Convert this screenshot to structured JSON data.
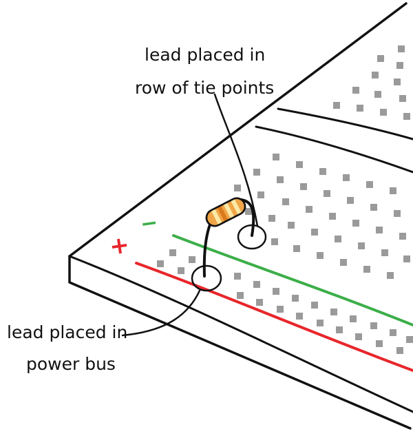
{
  "callouts": {
    "tie_points_line1": "lead placed in",
    "tie_points_line2": "row of tie points",
    "power_bus_line1": "lead placed in",
    "power_bus_line2": "power bus"
  },
  "bus_signs": {
    "minus": "−",
    "plus": "+"
  },
  "colors": {
    "outline": "#111111",
    "hole": "#9a9a9a",
    "positive_rail": "#e8262b",
    "negative_rail": "#3cae49",
    "resistor_body": "#f0a547",
    "resistor_band_light": "#fbe9a6",
    "resistor_band_dark": "#d97a1c"
  }
}
